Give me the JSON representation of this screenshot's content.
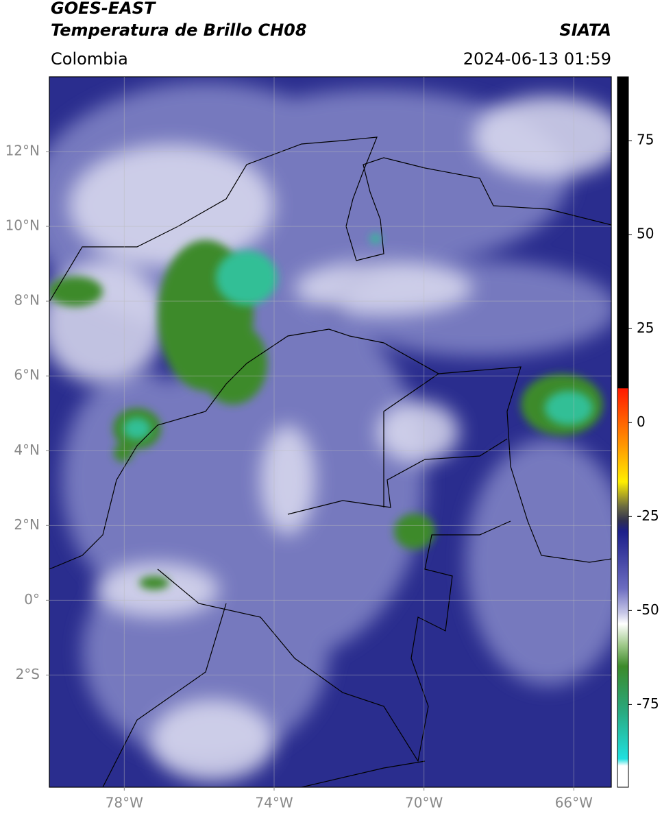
{
  "header": {
    "title": "GOES-EAST",
    "subtitle": "Temperatura de Brillo CH08",
    "source": "SIATA",
    "region": "Colombia",
    "datetime": "2024-06-13 01:59"
  },
  "map": {
    "xlim": [
      -80,
      -65
    ],
    "ylim": [
      -5,
      14
    ],
    "xticks": [
      {
        "value": -78,
        "label": "78°W"
      },
      {
        "value": -74,
        "label": "74°W"
      },
      {
        "value": -70,
        "label": "70°W"
      },
      {
        "value": -66,
        "label": "66°W"
      }
    ],
    "yticks": [
      {
        "value": 12,
        "label": "12°N"
      },
      {
        "value": 10,
        "label": "10°N"
      },
      {
        "value": 8,
        "label": "8°N"
      },
      {
        "value": 6,
        "label": "6°N"
      },
      {
        "value": 4,
        "label": "4°N"
      },
      {
        "value": 2,
        "label": "2°N"
      },
      {
        "value": 0,
        "label": "0°"
      },
      {
        "value": -2,
        "label": "2°S"
      }
    ],
    "grid": true
  },
  "colorbar": {
    "lim": [
      -97,
      92
    ],
    "ticks": [
      75,
      50,
      25,
      0,
      -25,
      -50,
      -75
    ]
  }
}
